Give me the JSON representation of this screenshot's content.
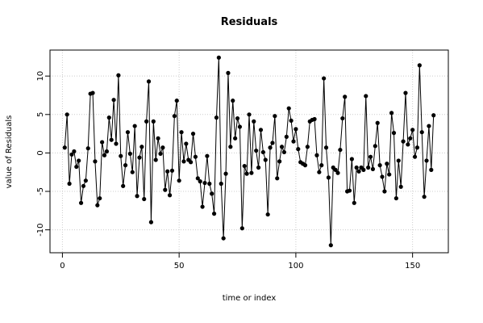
{
  "chart_data": {
    "type": "line",
    "title": "Residuals",
    "x_label": "time or index",
    "y_label": "value of Residuals",
    "x": [
      1,
      2,
      3,
      4,
      5,
      6,
      7,
      8,
      9,
      10,
      11,
      12,
      13,
      14,
      15,
      16,
      17,
      18,
      19,
      20,
      21,
      22,
      23,
      24,
      25,
      26,
      27,
      28,
      29,
      30,
      31,
      32,
      33,
      34,
      35,
      36,
      37,
      38,
      39,
      40,
      41,
      42,
      43,
      44,
      45,
      46,
      47,
      48,
      49,
      50,
      51,
      52,
      53,
      54,
      55,
      56,
      57,
      58,
      59,
      60,
      61,
      62,
      63,
      64,
      65,
      66,
      67,
      68,
      69,
      70,
      71,
      72,
      73,
      74,
      75,
      76,
      77,
      78,
      79,
      80,
      81,
      82,
      83,
      84,
      85,
      86,
      87,
      88,
      89,
      90,
      91,
      92,
      93,
      94,
      95,
      96,
      97,
      98,
      99,
      100,
      101,
      102,
      103,
      104,
      105,
      106,
      107,
      108,
      109,
      110,
      111,
      112,
      113,
      114,
      115,
      116,
      117,
      118,
      119,
      120,
      121,
      122,
      123,
      124,
      125,
      126,
      127,
      128,
      129,
      130,
      131,
      132,
      133,
      134,
      135,
      136,
      137,
      138,
      139,
      140,
      141,
      142,
      143,
      144,
      145,
      146,
      147,
      148,
      149,
      150,
      151,
      152,
      153,
      154,
      155,
      156,
      157,
      158,
      159
    ],
    "values": [
      0.7,
      5.0,
      -4.0,
      -0.2,
      0.2,
      -1.8,
      -1.0,
      -6.5,
      -4.3,
      -3.6,
      0.6,
      7.7,
      7.8,
      -1.1,
      -6.8,
      -5.9,
      1.4,
      -0.3,
      0.2,
      4.6,
      1.7,
      6.9,
      1.2,
      10.1,
      -0.4,
      -4.3,
      -1.6,
      2.7,
      -0.1,
      -2.5,
      3.5,
      -5.6,
      -0.6,
      0.8,
      -6.0,
      4.1,
      9.3,
      -9.0,
      4.1,
      -0.9,
      1.9,
      -0.1,
      0.7,
      -4.8,
      -2.4,
      -5.5,
      -2.3,
      4.8,
      6.8,
      -3.6,
      2.7,
      -1.1,
      1.2,
      -0.9,
      -1.2,
      2.5,
      -0.5,
      -3.3,
      -3.7,
      -7.0,
      -3.9,
      -0.4,
      -4.0,
      -5.3,
      -7.9,
      4.6,
      12.4,
      -4.0,
      -11.1,
      -2.7,
      10.4,
      0.8,
      6.8,
      1.9,
      4.5,
      3.4,
      -9.8,
      -1.7,
      -2.7,
      5.0,
      -2.6,
      4.1,
      0.3,
      -1.9,
      3.0,
      0.1,
      -0.9,
      -8.0,
      0.7,
      1.3,
      4.8,
      -3.3,
      -1.1,
      0.8,
      0.1,
      2.1,
      5.8,
      4.2,
      1.5,
      3.1,
      0.5,
      -1.2,
      -1.4,
      -1.6,
      0.8,
      4.1,
      4.3,
      4.4,
      -0.3,
      -2.5,
      -1.6,
      9.7,
      0.7,
      -3.2,
      -12.0,
      -1.9,
      -2.2,
      -2.6,
      0.4,
      4.5,
      7.3,
      -5.0,
      -4.9,
      -0.8,
      -6.5,
      -1.9,
      -2.4,
      -1.9,
      -2.2,
      7.4,
      -1.9,
      -0.5,
      -2.1,
      0.9,
      3.9,
      -1.6,
      -3.1,
      -5.0,
      -1.4,
      -2.8,
      5.2,
      2.6,
      -5.9,
      -1.0,
      -4.4,
      1.5,
      7.8,
      1.1,
      1.9,
      3.0,
      -0.5,
      0.7,
      11.4,
      2.7,
      -5.7,
      -1.0,
      3.5,
      -2.2,
      4.9
    ],
    "color": "#000000",
    "xlim": [
      -5.32,
      165.32
    ],
    "xticks": [
      0,
      50,
      100,
      150
    ],
    "ylim": [
      -12.98,
      13.38
    ],
    "yticks": [
      -10,
      -5,
      0,
      5,
      10
    ],
    "grid": true
  }
}
